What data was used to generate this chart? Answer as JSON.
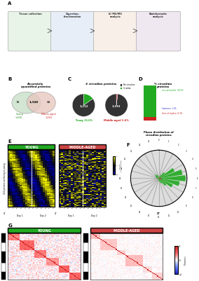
{
  "panel_B": {
    "title": "Accurately\nquantified proteins",
    "young_color": "#c8dfc8",
    "middle_color": "#e8c8c0",
    "young_label_color": "#228B22",
    "middle_label_color": "#cc2222"
  },
  "panel_C": {
    "title": "# circadian proteins",
    "young_circadian": 214,
    "young_noncircadian": 1212,
    "middle_circadian": 23,
    "middle_noncircadian": 1393,
    "circadian_color": "#22aa22",
    "noncircadian_color": "#333333",
    "middle_circadian_color": "#cc2222"
  },
  "panel_D": {
    "title": "% circadian\nproteins",
    "loss_pct": 90.3,
    "common_pct": 0.4,
    "gain_pct": 9.3,
    "loss_color": "#22aa22",
    "common_color": "#2222cc",
    "gain_color": "#cc2222",
    "loss_label": "Loss-of-rhythm: 90.3%",
    "common_label": "Common: <1%",
    "gain_label": "Gain-of-rhythm: 9.3%",
    "loss_label_color": "#22aa22",
    "common_label_color": "#2222cc",
    "gain_label_color": "#cc2222"
  },
  "panel_E": {
    "young_title": "YOUNG",
    "middle_title": "MIDDLE-AGED",
    "young_title_bg": "#22aa22",
    "middle_title_bg": "#cc4444",
    "ct_ticks": [
      2,
      6,
      10,
      14,
      18,
      22,
      26,
      30,
      34,
      38,
      42,
      46
    ],
    "colorbar_label": "z-score\n(LFQ intensity)"
  },
  "panel_F": {
    "title": "Phase distribution of\ncircadian proteins",
    "young_color": "#22aa22",
    "middle_color": "#cc2222"
  },
  "panel_G": {
    "young_title": "YOUNG",
    "middle_title": "MIDDLE-AGED",
    "young_title_bg": "#22aa22",
    "middle_title_bg": "#cc4444",
    "colorbar_label": "Pearson r"
  },
  "figure_bg": "#ffffff"
}
